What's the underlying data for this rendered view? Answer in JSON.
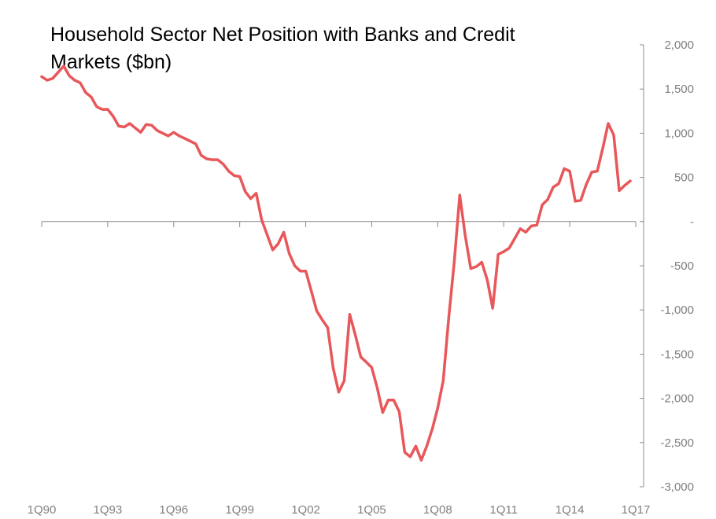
{
  "chart_data": {
    "type": "line",
    "title_lines": [
      "Household Sector Net Position with Banks and Credit",
      "Markets ($bn)"
    ],
    "xlabel": "",
    "ylabel": "",
    "y_axis_position": "right",
    "ylim": [
      -3000,
      2000
    ],
    "y_ticks": [
      2000,
      1500,
      1000,
      500,
      0,
      -500,
      -1000,
      -1500,
      -2000,
      -2500,
      -3000
    ],
    "y_tick_labels": [
      "2,000",
      "1,500",
      "1,000",
      "500",
      "-",
      "-500",
      "-1,000",
      "-1,500",
      "-2,000",
      "-2,500",
      "-3,000"
    ],
    "x_range": [
      1990.0,
      2017.0
    ],
    "x_ticks": [
      1990,
      1993,
      1996,
      1999,
      2002,
      2005,
      2008,
      2011,
      2014,
      2017
    ],
    "x_tick_labels": [
      "1Q90",
      "1Q93",
      "1Q96",
      "1Q99",
      "1Q02",
      "1Q05",
      "1Q08",
      "1Q11",
      "1Q14",
      "1Q17"
    ],
    "grid": false,
    "legend": "none",
    "line_color": "#e8575a",
    "series": [
      {
        "x": [
          1990.0,
          1990.25,
          1990.5,
          1990.75,
          1991.0,
          1991.25,
          1991.5,
          1991.75,
          1992.0,
          1992.25,
          1992.5,
          1992.75,
          1993.0,
          1993.25,
          1993.5,
          1993.75,
          1994.0,
          1994.25,
          1994.5,
          1994.75,
          1995.0,
          1995.25,
          1995.5,
          1995.75,
          1996.0,
          1996.25,
          1996.5,
          1996.75,
          1997.0,
          1997.25,
          1997.5,
          1997.75,
          1998.0,
          1998.25,
          1998.5,
          1998.75,
          1999.0,
          1999.25,
          1999.5,
          1999.75,
          2000.0,
          2000.25,
          2000.5,
          2000.75,
          2001.0,
          2001.25,
          2001.5,
          2001.75,
          2002.0,
          2002.25,
          2002.5,
          2002.75,
          2003.0,
          2003.25,
          2003.5,
          2003.75,
          2004.0,
          2004.25,
          2004.5,
          2004.75,
          2005.0,
          2005.25,
          2005.5,
          2005.75,
          2006.0,
          2006.25,
          2006.5,
          2006.75,
          2007.0,
          2007.25,
          2007.5,
          2007.75,
          2008.0,
          2008.25,
          2008.5,
          2008.75,
          2009.0,
          2009.25,
          2009.5,
          2009.75,
          2010.0,
          2010.25,
          2010.5,
          2010.75,
          2011.0,
          2011.25,
          2011.5,
          2011.75,
          2012.0,
          2012.25,
          2012.5,
          2012.75,
          2013.0,
          2013.25,
          2013.5,
          2013.75,
          2014.0,
          2014.25,
          2014.5,
          2014.75,
          2015.0,
          2015.25,
          2015.5,
          2015.75,
          2016.0,
          2016.25,
          2016.5,
          2016.75
        ],
        "y": [
          1640,
          1600,
          1620,
          1690,
          1760,
          1650,
          1600,
          1570,
          1460,
          1410,
          1300,
          1270,
          1270,
          1190,
          1080,
          1070,
          1110,
          1060,
          1010,
          1100,
          1090,
          1030,
          1000,
          970,
          1010,
          970,
          940,
          910,
          880,
          750,
          710,
          700,
          700,
          650,
          570,
          520,
          510,
          340,
          260,
          320,
          20,
          -150,
          -320,
          -250,
          -120,
          -360,
          -500,
          -560,
          -560,
          -780,
          -1010,
          -1110,
          -1200,
          -1660,
          -1930,
          -1800,
          -1050,
          -1280,
          -1530,
          -1590,
          -1650,
          -1880,
          -2160,
          -2020,
          -2020,
          -2150,
          -2610,
          -2660,
          -2540,
          -2700,
          -2540,
          -2350,
          -2110,
          -1800,
          -1090,
          -460,
          300,
          -160,
          -530,
          -510,
          -460,
          -660,
          -980,
          -370,
          -340,
          -300,
          -190,
          -80,
          -120,
          -50,
          -40,
          190,
          250,
          390,
          430,
          600,
          570,
          230,
          240,
          420,
          560,
          570,
          830,
          1110,
          980,
          350,
          410,
          460
        ]
      }
    ]
  }
}
